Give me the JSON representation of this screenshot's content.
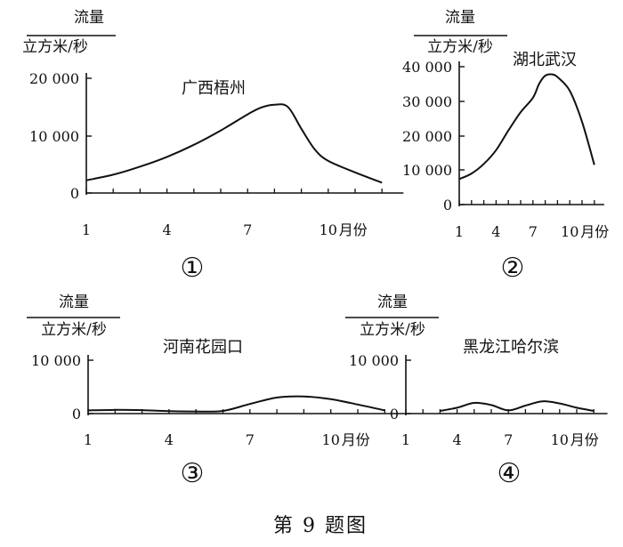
{
  "figure_caption": "第 9 题图",
  "chart_data": [
    {
      "type": "line",
      "panel_number": "①",
      "location": "广西梧州",
      "ylabel_numerator": "流量",
      "ylabel_denominator": "立方米/秒",
      "xlabel_suffix": "月份",
      "x_ticks": [
        "1",
        "4",
        "7",
        "10"
      ],
      "y_ticks": [
        "0",
        "10 000",
        "20 000"
      ],
      "xlim": [
        0,
        12.8
      ],
      "ylim": [
        0,
        20000
      ],
      "x": [
        1,
        2,
        3,
        4,
        5,
        6,
        7,
        7.5,
        8,
        8.5,
        9,
        9.5,
        10,
        11,
        12
      ],
      "y": [
        2200,
        3200,
        4600,
        6300,
        8400,
        10900,
        13700,
        14900,
        15400,
        15000,
        11200,
        7600,
        5600,
        3600,
        1800
      ]
    },
    {
      "type": "line",
      "panel_number": "②",
      "location": "湖北武汉",
      "ylabel_numerator": "流量",
      "ylabel_denominator": "立方米/秒",
      "xlabel_suffix": "月份",
      "x_ticks": [
        "1",
        "4",
        "7",
        "10"
      ],
      "y_ticks": [
        "0",
        "10 000",
        "20 000",
        "30 000",
        "40 000"
      ],
      "xlim": [
        0,
        12.8
      ],
      "ylim": [
        0,
        40000
      ],
      "x": [
        1,
        2,
        3,
        4,
        5,
        6,
        7,
        7.5,
        8,
        8.5,
        9,
        10,
        11,
        12
      ],
      "y": [
        7400,
        9000,
        11800,
        15800,
        21500,
        26800,
        31000,
        35000,
        37400,
        37800,
        37000,
        33000,
        24000,
        11500
      ]
    },
    {
      "type": "line",
      "panel_number": "③",
      "location": "河南花园口",
      "ylabel_numerator": "流量",
      "ylabel_denominator": "立方米/秒",
      "xlabel_suffix": "月份",
      "x_ticks": [
        "1",
        "4",
        "7",
        "10"
      ],
      "y_ticks": [
        "0",
        "10 000"
      ],
      "xlim": [
        0,
        12.8
      ],
      "ylim": [
        0,
        10000
      ],
      "x": [
        1,
        2,
        3,
        4,
        5,
        6,
        7,
        8,
        9,
        10,
        11,
        12
      ],
      "y": [
        600,
        700,
        650,
        450,
        400,
        500,
        1800,
        3000,
        3200,
        2700,
        1700,
        600
      ]
    },
    {
      "type": "line",
      "panel_number": "④",
      "location": "黑龙江哈尔滨",
      "ylabel_numerator": "流量",
      "ylabel_denominator": "立方米/秒",
      "xlabel_suffix": "月份",
      "x_ticks": [
        "1",
        "4",
        "7",
        "10"
      ],
      "y_ticks": [
        "0",
        "10 000"
      ],
      "xlim": [
        0,
        12.8
      ],
      "ylim": [
        0,
        10000
      ],
      "x": [
        3,
        4,
        5,
        6,
        7,
        8,
        9,
        10,
        11,
        12
      ],
      "y": [
        500,
        1100,
        2000,
        1600,
        600,
        1500,
        2300,
        1900,
        1100,
        500
      ]
    }
  ]
}
